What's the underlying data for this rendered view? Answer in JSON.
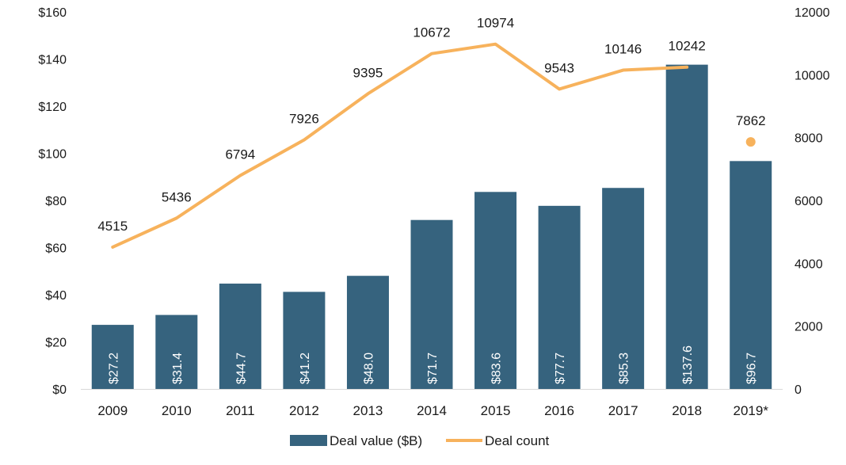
{
  "chart_data": {
    "type": "bar",
    "categories": [
      "2009",
      "2010",
      "2011",
      "2012",
      "2013",
      "2014",
      "2015",
      "2016",
      "2017",
      "2018",
      "2019*"
    ],
    "series": [
      {
        "name": "Deal value ($B)",
        "type": "bar",
        "axis": "left",
        "color": "#36637e",
        "values": [
          27.2,
          31.4,
          44.7,
          41.2,
          48.0,
          71.7,
          83.6,
          77.7,
          85.3,
          137.6,
          96.7
        ],
        "labels": [
          "$27.2",
          "$31.4",
          "$44.7",
          "$41.2",
          "$48.0",
          "$71.7",
          "$83.6",
          "$77.7",
          "$85.3",
          "$137.6",
          "$96.7"
        ]
      },
      {
        "name": "Deal count",
        "type": "line",
        "axis": "right",
        "color": "#f7b25c",
        "values": [
          4515,
          5436,
          6794,
          7926,
          9395,
          10672,
          10974,
          9543,
          10146,
          10242,
          7862
        ],
        "line_segment_end_index": 9,
        "separate_point_indices": [
          10
        ]
      }
    ],
    "y_left": {
      "min": 0,
      "max": 160,
      "step": 20,
      "tick_labels": [
        "$0",
        "$20",
        "$40",
        "$60",
        "$80",
        "$100",
        "$120",
        "$140",
        "$160"
      ]
    },
    "y_right": {
      "min": 0,
      "max": 12000,
      "step": 2000,
      "tick_labels": [
        "0",
        "2000",
        "4000",
        "6000",
        "8000",
        "10000",
        "12000"
      ]
    },
    "grid": false,
    "legend_position": "bottom",
    "title": "",
    "xlabel": "",
    "ylabel": ""
  }
}
